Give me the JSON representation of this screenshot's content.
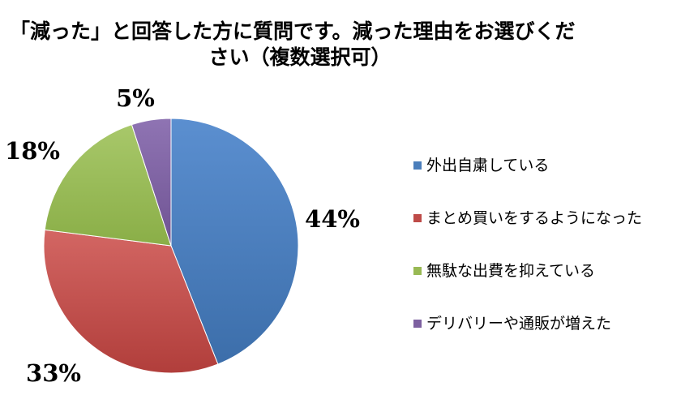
{
  "chart_data": {
    "type": "pie",
    "title_lines": [
      "「減った」と回答した方に質問です。減った理由をお選びくだ",
      "さい（複数選択可）"
    ],
    "categories": [
      "外出自粛している",
      "まとめ買いをするようになった",
      "無駄な出費を抑えている",
      "デリバリーや通販が増えた"
    ],
    "values": [
      44,
      33,
      18,
      5
    ],
    "labels": [
      "44%",
      "33%",
      "18%",
      "5%"
    ],
    "colors": [
      "#4a7ebb",
      "#be4b48",
      "#98b954",
      "#7d60a0"
    ],
    "legend_position": "right"
  }
}
